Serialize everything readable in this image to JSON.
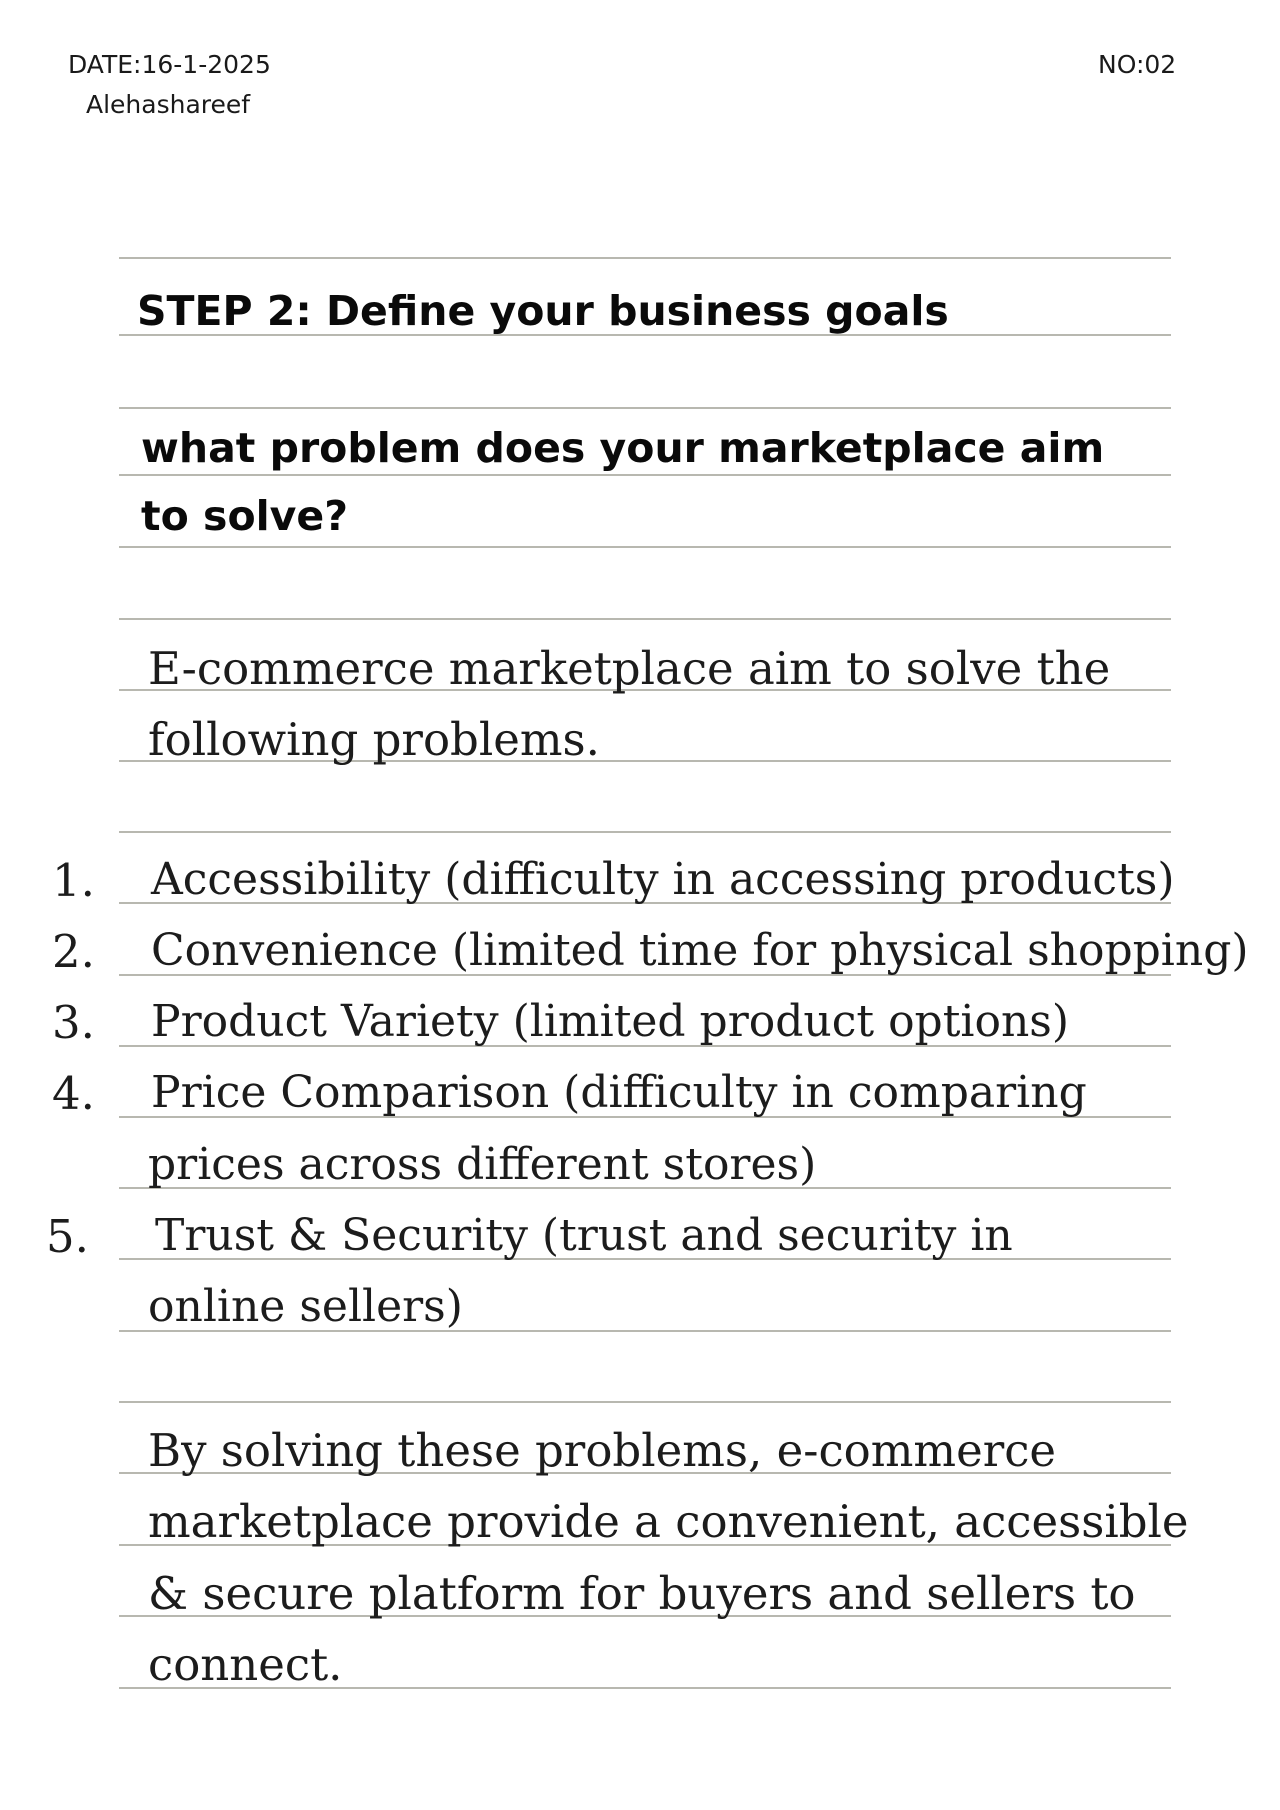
{
  "header": {
    "date": "DATE:16-1-2025",
    "author": "Alehashareef",
    "page_no": "NO:02"
  },
  "step_title": "STEP 2: Define your business goals",
  "question": {
    "line1": "what problem does your marketplace aim",
    "line2": "to solve?"
  },
  "intro": {
    "line1": "E-commerce marketplace aim to solve the",
    "line2": "following problems."
  },
  "problems": [
    {
      "number": "1.",
      "line1": "Accessibility (difficulty in accessing products)"
    },
    {
      "number": "2.",
      "line1": "Convenience (limited time for physical shopping)"
    },
    {
      "number": "3.",
      "line1": "Product Variety (limited product options)"
    },
    {
      "number": "4.",
      "line1": "Price Comparison (difficulty in comparing",
      "line2": "prices across different stores)"
    },
    {
      "number": "5.",
      "line1": "Trust & Security (trust and security in",
      "line2": "online sellers)"
    }
  ],
  "conclusion": {
    "line1": "By solving these problems, e-commerce",
    "line2": "marketplace provide a convenient, accessible",
    "line3": "& secure platform for buyers and sellers to",
    "line4": "connect."
  }
}
